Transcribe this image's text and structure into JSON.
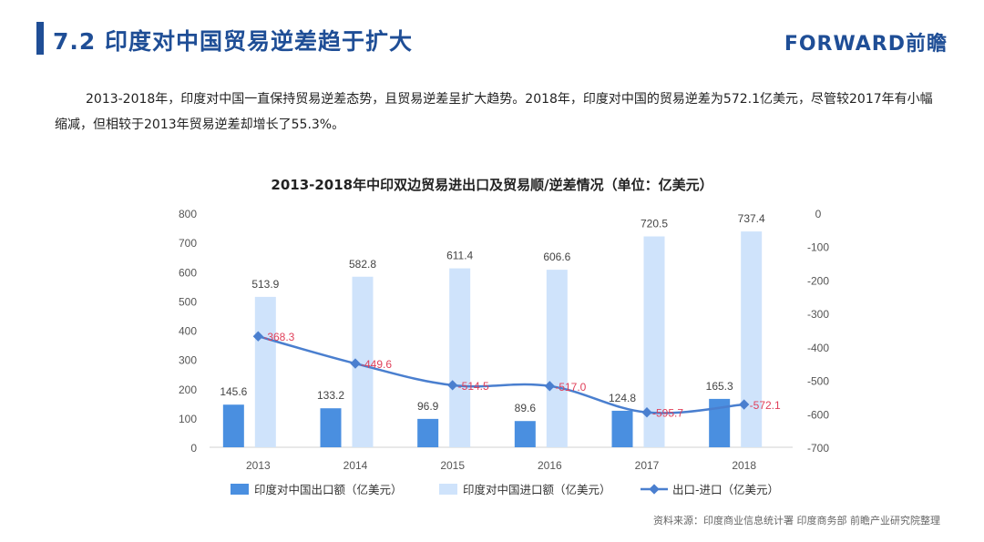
{
  "header": {
    "title": "7.2 印度对中国贸易逆差趋于扩大",
    "logo": "FORWARD前瞻"
  },
  "paragraph": "2013-2018年，印度对中国一直保持贸易逆差态势，且贸易逆差呈扩大趋势。2018年，印度对中国的贸易逆差为572.1亿美元，尽管较2017年有小幅缩减，但相较于2013年贸易逆差却增长了55.3%。",
  "source": "资料来源：印度商业信息统计署 印度商务部  前瞻产业研究院整理",
  "colors": {
    "title": "#1f4e96",
    "export_bar": "#4a8fe0",
    "import_bar": "#cfe3fb",
    "line": "#4a7fcf",
    "line_label": "#e0405a"
  },
  "chart_data": {
    "type": "bar",
    "title": "2013-2018年中印双边贸易进出口及贸易顺/逆差情况（单位：亿美元）",
    "categories": [
      "2013",
      "2014",
      "2015",
      "2016",
      "2017",
      "2018"
    ],
    "y_left": {
      "min": 0,
      "max": 800,
      "ticks": [
        "0",
        "100",
        "200",
        "300",
        "400",
        "500",
        "600",
        "700",
        "800"
      ]
    },
    "y_right": {
      "min": -700,
      "max": 0,
      "inverted": true,
      "ticks": [
        "0",
        "-100",
        "-200",
        "-300",
        "-400",
        "-500",
        "-600",
        "-700"
      ]
    },
    "series": [
      {
        "name": "印度对中国出口额（亿美元）",
        "type": "bar",
        "axis": "left",
        "values": [
          145.6,
          133.2,
          96.9,
          89.6,
          124.8,
          165.3
        ],
        "labels": [
          "145.6",
          "133.2",
          "96.9",
          "89.6",
          "124.8",
          "165.3"
        ]
      },
      {
        "name": "印度对中国进口额（亿美元）",
        "type": "bar",
        "axis": "left",
        "values": [
          513.9,
          582.8,
          611.4,
          606.6,
          720.5,
          737.4
        ],
        "labels": [
          "513.9",
          "582.8",
          "611.4",
          "606.6",
          "720.5",
          "737.4"
        ]
      },
      {
        "name": "出口-进口（亿美元）",
        "type": "line",
        "axis": "right",
        "values": [
          -368.3,
          -449.6,
          -514.5,
          -517.0,
          -595.7,
          -572.1
        ],
        "labels": [
          "-368.3",
          "-449.6",
          "-514.5",
          "-517.0",
          "-595.7",
          "-572.1"
        ]
      }
    ],
    "legend": "bottom"
  }
}
